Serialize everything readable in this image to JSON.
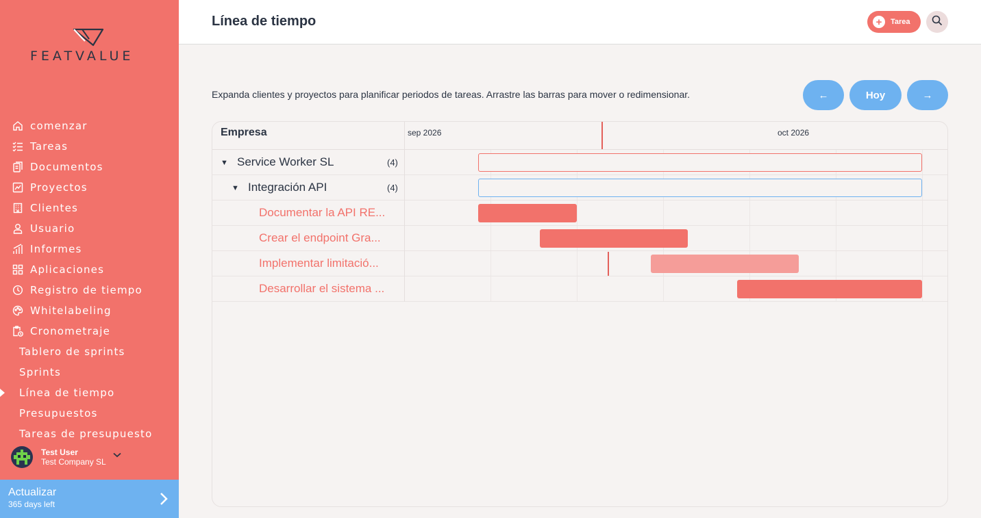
{
  "brand": {
    "name": "FEATVALUE",
    "accent": "#f2726b",
    "secondary": "#6eb2f0"
  },
  "sidebar": {
    "items": [
      {
        "label": "comenzar",
        "icon": "home-icon"
      },
      {
        "label": "Tareas",
        "icon": "checklist-icon"
      },
      {
        "label": "Documentos",
        "icon": "documents-icon"
      },
      {
        "label": "Proyectos",
        "icon": "projects-icon"
      },
      {
        "label": "Clientes",
        "icon": "building-icon"
      },
      {
        "label": "Usuario",
        "icon": "user-icon"
      },
      {
        "label": "Informes",
        "icon": "bar-chart-icon"
      },
      {
        "label": "Aplicaciones",
        "icon": "apps-icon"
      },
      {
        "label": "Registro de tiempo",
        "icon": "timer-icon"
      },
      {
        "label": "Whitelabeling",
        "icon": "palette-icon"
      },
      {
        "label": "Cronometraje",
        "icon": "clipboard-clock-icon"
      }
    ],
    "subitems": [
      {
        "label": "Tablero de sprints",
        "active": false
      },
      {
        "label": "Sprints",
        "active": false
      },
      {
        "label": "Línea de tiempo",
        "active": true
      },
      {
        "label": "Presupuestos",
        "active": false
      },
      {
        "label": "Tareas de presupuesto",
        "active": false
      }
    ],
    "user": {
      "name": "Test User",
      "company": "Test Company SL"
    },
    "upgrade": {
      "title": "Actualizar",
      "subtitle": "365 days left"
    }
  },
  "header": {
    "title": "Línea de tiempo",
    "task_button": "Tarea"
  },
  "main": {
    "description": "Expanda clientes y proyectos para planificar periodos de tareas. Arrastre las barras para mover o redimensionar.",
    "nav": {
      "prev": "←",
      "today": "Hoy",
      "next": "→"
    },
    "gantt": {
      "column_header": "Empresa",
      "months": [
        "sep 2026",
        "oct 2026"
      ],
      "rows": [
        {
          "label": "Service Worker SL",
          "count": "(4)",
          "level": 0,
          "kind": "client"
        },
        {
          "label": "Integración API",
          "count": "(4)",
          "level": 1,
          "kind": "project"
        },
        {
          "label": "Documentar la API RE...",
          "level": 2,
          "kind": "task"
        },
        {
          "label": "Crear el endpoint Gra...",
          "level": 2,
          "kind": "task"
        },
        {
          "label": "Implementar limitació...",
          "level": 2,
          "kind": "task"
        },
        {
          "label": "Desarrollar el sistema ...",
          "level": 2,
          "kind": "task"
        }
      ]
    }
  }
}
